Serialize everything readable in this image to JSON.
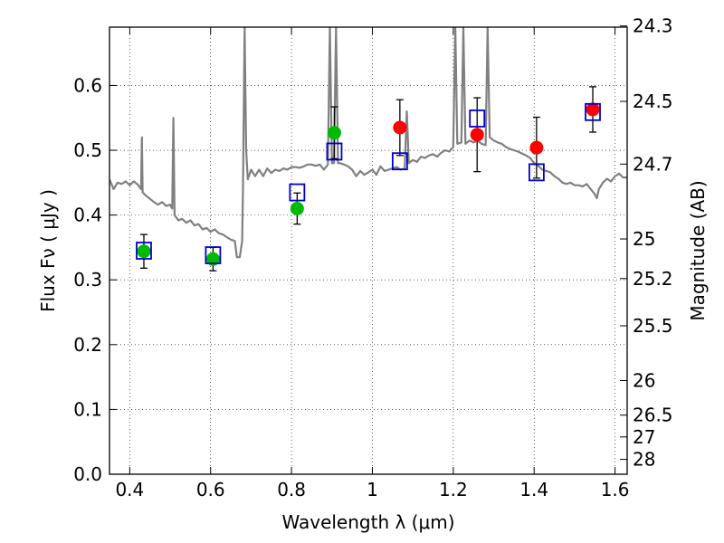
{
  "chart_data": {
    "type": "scatter",
    "xlabel": "Wavelength  λ (μm)",
    "ylabel": "Flux  Fν  ( μJy )",
    "y2label": "Magnitude (AB)",
    "xlim": [
      0.35,
      1.63
    ],
    "ylim": [
      0.0,
      0.69
    ],
    "grid": true,
    "x_ticks": [
      0.4,
      0.6,
      0.8,
      1.0,
      1.2,
      1.4,
      1.6
    ],
    "x_tick_labels": [
      "0.4",
      "0.6",
      "0.8",
      "1",
      "1.2",
      "1.4",
      "1.6"
    ],
    "y_ticks": [
      0.0,
      0.1,
      0.2,
      0.3,
      0.4,
      0.5,
      0.6
    ],
    "y_tick_labels": [
      "0.0",
      "0.1",
      "0.2",
      "0.3",
      "0.4",
      "0.5",
      "0.6"
    ],
    "y2_ticks": [
      {
        "mag": 24.3,
        "label": "24.3"
      },
      {
        "mag": 24.5,
        "label": "24.5"
      },
      {
        "mag": 24.7,
        "label": "24.7"
      },
      {
        "mag": 25.0,
        "label": "25"
      },
      {
        "mag": 25.2,
        "label": "25.2"
      },
      {
        "mag": 25.5,
        "label": "25.5"
      },
      {
        "mag": 26.0,
        "label": "26"
      },
      {
        "mag": 26.5,
        "label": "26.5"
      },
      {
        "mag": 27.0,
        "label": "27"
      },
      {
        "mag": 28.0,
        "label": "28"
      }
    ],
    "series": [
      {
        "kind": "points",
        "marker": "circle",
        "color": "#00bb00",
        "points": [
          {
            "x": 0.435,
            "y": 0.344,
            "err": 0.026
          },
          {
            "x": 0.606,
            "y": 0.332,
            "err": 0.018
          },
          {
            "x": 0.814,
            "y": 0.41,
            "err": 0.024
          },
          {
            "x": 0.906,
            "y": 0.527,
            "err": 0.04
          }
        ]
      },
      {
        "kind": "points",
        "marker": "circle",
        "color": "#ff0000",
        "points": [
          {
            "x": 1.068,
            "y": 0.535,
            "err": 0.043
          },
          {
            "x": 1.259,
            "y": 0.524,
            "err": 0.057
          },
          {
            "x": 1.406,
            "y": 0.504,
            "err": 0.047
          },
          {
            "x": 1.545,
            "y": 0.563,
            "err": 0.035
          }
        ]
      },
      {
        "kind": "points",
        "marker": "open-square",
        "color": "#0000cc",
        "points": [
          {
            "x": 0.435,
            "y": 0.345
          },
          {
            "x": 0.606,
            "y": 0.338
          },
          {
            "x": 0.814,
            "y": 0.435
          },
          {
            "x": 0.906,
            "y": 0.498
          },
          {
            "x": 1.068,
            "y": 0.483
          },
          {
            "x": 1.259,
            "y": 0.549
          },
          {
            "x": 1.406,
            "y": 0.466
          },
          {
            "x": 1.545,
            "y": 0.559
          }
        ]
      },
      {
        "kind": "line",
        "color": "#808080",
        "points": [
          [
            0.35,
            0.455
          ],
          [
            0.36,
            0.44
          ],
          [
            0.37,
            0.45
          ],
          [
            0.38,
            0.448
          ],
          [
            0.39,
            0.452
          ],
          [
            0.4,
            0.446
          ],
          [
            0.41,
            0.452
          ],
          [
            0.42,
            0.447
          ],
          [
            0.428,
            0.44
          ],
          [
            0.43,
            0.52
          ],
          [
            0.432,
            0.435
          ],
          [
            0.44,
            0.43
          ],
          [
            0.45,
            0.425
          ],
          [
            0.46,
            0.42
          ],
          [
            0.47,
            0.416
          ],
          [
            0.48,
            0.42
          ],
          [
            0.49,
            0.414
          ],
          [
            0.5,
            0.416
          ],
          [
            0.505,
            0.41
          ],
          [
            0.508,
            0.55
          ],
          [
            0.511,
            0.4
          ],
          [
            0.52,
            0.392
          ],
          [
            0.53,
            0.394
          ],
          [
            0.54,
            0.388
          ],
          [
            0.55,
            0.392
          ],
          [
            0.56,
            0.384
          ],
          [
            0.57,
            0.386
          ],
          [
            0.58,
            0.378
          ],
          [
            0.59,
            0.38
          ],
          [
            0.6,
            0.374
          ],
          [
            0.61,
            0.378
          ],
          [
            0.62,
            0.372
          ],
          [
            0.63,
            0.37
          ],
          [
            0.64,
            0.366
          ],
          [
            0.65,
            0.362
          ],
          [
            0.66,
            0.36
          ],
          [
            0.665,
            0.335
          ],
          [
            0.672,
            0.335
          ],
          [
            0.678,
            0.36
          ],
          [
            0.68,
            0.44
          ],
          [
            0.684,
            0.69
          ],
          [
            0.688,
            0.5
          ],
          [
            0.692,
            0.455
          ],
          [
            0.7,
            0.47
          ],
          [
            0.71,
            0.46
          ],
          [
            0.72,
            0.47
          ],
          [
            0.73,
            0.46
          ],
          [
            0.74,
            0.472
          ],
          [
            0.75,
            0.465
          ],
          [
            0.76,
            0.47
          ],
          [
            0.77,
            0.468
          ],
          [
            0.78,
            0.472
          ],
          [
            0.79,
            0.47
          ],
          [
            0.8,
            0.474
          ],
          [
            0.81,
            0.474
          ],
          [
            0.82,
            0.473
          ],
          [
            0.83,
            0.475
          ],
          [
            0.84,
            0.478
          ],
          [
            0.85,
            0.478
          ],
          [
            0.86,
            0.476
          ],
          [
            0.87,
            0.478
          ],
          [
            0.88,
            0.47
          ],
          [
            0.89,
            0.478
          ],
          [
            0.895,
            0.69
          ],
          [
            0.9,
            0.48
          ],
          [
            0.905,
            0.48
          ],
          [
            0.91,
            0.69
          ],
          [
            0.915,
            0.48
          ],
          [
            0.92,
            0.48
          ],
          [
            0.93,
            0.478
          ],
          [
            0.94,
            0.475
          ],
          [
            0.95,
            0.47
          ],
          [
            0.96,
            0.46
          ],
          [
            0.97,
            0.468
          ],
          [
            0.98,
            0.462
          ],
          [
            0.99,
            0.466
          ],
          [
            1.0,
            0.47
          ],
          [
            1.01,
            0.462
          ],
          [
            1.02,
            0.475
          ],
          [
            1.03,
            0.468
          ],
          [
            1.04,
            0.47
          ],
          [
            1.05,
            0.472
          ],
          [
            1.06,
            0.474
          ],
          [
            1.07,
            0.47
          ],
          [
            1.08,
            0.472
          ],
          [
            1.085,
            0.56
          ],
          [
            1.09,
            0.48
          ],
          [
            1.1,
            0.485
          ],
          [
            1.11,
            0.482
          ],
          [
            1.12,
            0.49
          ],
          [
            1.13,
            0.488
          ],
          [
            1.14,
            0.492
          ],
          [
            1.15,
            0.494
          ],
          [
            1.16,
            0.49
          ],
          [
            1.17,
            0.496
          ],
          [
            1.18,
            0.5
          ],
          [
            1.19,
            0.498
          ],
          [
            1.2,
            0.505
          ],
          [
            1.205,
            0.69
          ],
          [
            1.21,
            0.51
          ],
          [
            1.22,
            0.512
          ],
          [
            1.225,
            0.69
          ],
          [
            1.23,
            0.51
          ],
          [
            1.24,
            0.515
          ],
          [
            1.25,
            0.512
          ],
          [
            1.26,
            0.515
          ],
          [
            1.27,
            0.51
          ],
          [
            1.28,
            0.508
          ],
          [
            1.285,
            0.69
          ],
          [
            1.29,
            0.52
          ],
          [
            1.3,
            0.515
          ],
          [
            1.31,
            0.512
          ],
          [
            1.32,
            0.51
          ],
          [
            1.33,
            0.505
          ],
          [
            1.34,
            0.502
          ],
          [
            1.35,
            0.5
          ],
          [
            1.36,
            0.498
          ],
          [
            1.37,
            0.495
          ],
          [
            1.38,
            0.492
          ],
          [
            1.39,
            0.488
          ],
          [
            1.4,
            0.48
          ],
          [
            1.41,
            0.476
          ],
          [
            1.42,
            0.47
          ],
          [
            1.43,
            0.468
          ],
          [
            1.44,
            0.466
          ],
          [
            1.45,
            0.46
          ],
          [
            1.46,
            0.456
          ],
          [
            1.47,
            0.45
          ],
          [
            1.48,
            0.448
          ],
          [
            1.49,
            0.45
          ],
          [
            1.5,
            0.446
          ],
          [
            1.51,
            0.446
          ],
          [
            1.52,
            0.444
          ],
          [
            1.53,
            0.448
          ],
          [
            1.54,
            0.44
          ],
          [
            1.55,
            0.432
          ],
          [
            1.555,
            0.426
          ],
          [
            1.56,
            0.44
          ],
          [
            1.57,
            0.45
          ],
          [
            1.58,
            0.456
          ],
          [
            1.59,
            0.452
          ],
          [
            1.6,
            0.46
          ],
          [
            1.61,
            0.464
          ],
          [
            1.62,
            0.458
          ],
          [
            1.63,
            0.458
          ]
        ]
      }
    ]
  }
}
